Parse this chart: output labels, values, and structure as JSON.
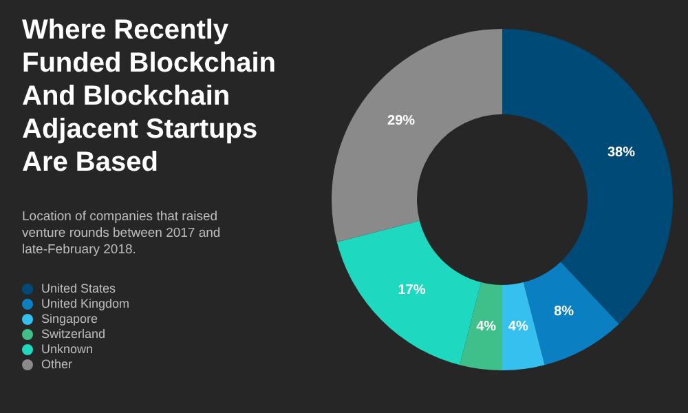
{
  "chart_data": {
    "type": "donut",
    "title": "Where Recently Funded Blockchain And Blockchain Adjacent Startups Are Based",
    "subtitle": "Location of companies that raised venture rounds between 2017 and late-February 2018.",
    "categories": [
      "United States",
      "United Kingdom",
      "Singapore",
      "Switzerland",
      "Unknown",
      "Other"
    ],
    "values": [
      38,
      8,
      4,
      4,
      17,
      29
    ],
    "colors": [
      "#004a77",
      "#0a7fc2",
      "#35c0f0",
      "#3fbf8a",
      "#1ed8c0",
      "#8a8a8a"
    ],
    "value_labels": [
      "38%",
      "8%",
      "4%",
      "4%",
      "17%",
      "29%"
    ],
    "legend": "left"
  }
}
